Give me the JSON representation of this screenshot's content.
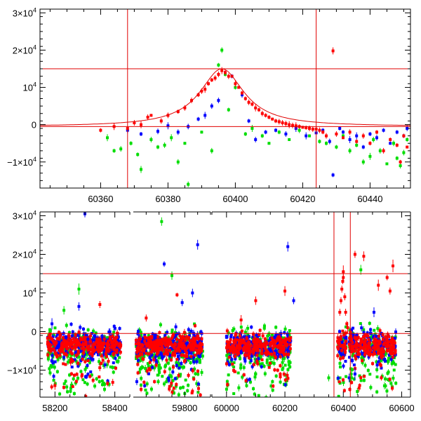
{
  "chart_data": [
    {
      "type": "scatter",
      "title": "",
      "xlabel": "",
      "ylabel": "",
      "xlim": [
        60342,
        60452
      ],
      "ylim": [
        -17000,
        31000
      ],
      "grid": false,
      "x_ticks": [
        "60360",
        "60380",
        "60400",
        "60420",
        "60440"
      ],
      "y_ticks": [
        {
          "value": 30000,
          "base": "3×10",
          "exp": "4"
        },
        {
          "value": 20000,
          "base": "2×10",
          "exp": "4"
        },
        {
          "value": 10000,
          "base": "10",
          "exp": "4"
        },
        {
          "value": 0,
          "base": "0",
          "exp": ""
        },
        {
          "value": -10000,
          "base": "−1×10",
          "exp": "4"
        }
      ],
      "hlines": [
        15000,
        -500
      ],
      "vlines": [
        60368,
        60424
      ],
      "model_curve": {
        "peak_x": 60396,
        "peak_y": 15000,
        "baseline": -500,
        "width": 8,
        "color": "#e00000"
      },
      "series": [
        {
          "color": "#0000ff",
          "points": [
            [
              60368,
              -1500
            ],
            [
              60372,
              -2500
            ],
            [
              60377,
              -1800
            ],
            [
              60380,
              -300
            ],
            [
              60383,
              -2000
            ],
            [
              60386,
              -500
            ],
            [
              60389,
              1500
            ],
            [
              60391,
              2500
            ],
            [
              60393,
              5000
            ],
            [
              60395,
              6500
            ],
            [
              60397,
              14000
            ],
            [
              60399,
              13000
            ],
            [
              60402,
              8000
            ],
            [
              60404,
              1000
            ],
            [
              60406,
              -4000
            ],
            [
              60409,
              -2000
            ],
            [
              60412,
              -1500
            ],
            [
              60415,
              -2500
            ],
            [
              60418,
              -1000
            ],
            [
              60421,
              -3000
            ],
            [
              60424,
              -2200
            ],
            [
              60426,
              -1500
            ],
            [
              60428,
              -4500
            ],
            [
              60429,
              -13500
            ],
            [
              60431,
              -1000
            ],
            [
              60432,
              -2000
            ],
            [
              60434,
              -4000
            ],
            [
              60436,
              -3000
            ],
            [
              60438,
              -6000
            ],
            [
              60440,
              -2500
            ],
            [
              60442,
              -3500
            ],
            [
              60444,
              -1500
            ],
            [
              60446,
              -5000
            ],
            [
              60448,
              -2000
            ],
            [
              60450,
              -3000
            ],
            [
              60451,
              -1000
            ]
          ]
        },
        {
          "color": "#00dd00",
          "points": [
            [
              60362,
              -3500
            ],
            [
              60364,
              -7000
            ],
            [
              60366,
              -6500
            ],
            [
              60369,
              -5000
            ],
            [
              60371,
              -8000
            ],
            [
              60372,
              -12000
            ],
            [
              60375,
              -4000
            ],
            [
              60377,
              -6000
            ],
            [
              60379,
              -5500
            ],
            [
              60381,
              -3500
            ],
            [
              60383,
              -10000
            ],
            [
              60385,
              -5000
            ],
            [
              60386,
              -16000
            ],
            [
              60390,
              -2000
            ],
            [
              60393,
              -7000
            ],
            [
              60395,
              16000
            ],
            [
              60396,
              20000
            ],
            [
              60397,
              13500
            ],
            [
              60398,
              4000
            ],
            [
              60400,
              10000
            ],
            [
              60403,
              -2500
            ],
            [
              60405,
              -1000
            ],
            [
              60408,
              -3000
            ],
            [
              60410,
              -5000
            ],
            [
              60413,
              -2000
            ],
            [
              60416,
              -4000
            ],
            [
              60419,
              -1500
            ],
            [
              60422,
              -3000
            ],
            [
              60425,
              -4500
            ],
            [
              60427,
              -5000
            ],
            [
              60430,
              -6000
            ],
            [
              60432,
              -3000
            ],
            [
              60434,
              -7000
            ],
            [
              60436,
              -5500
            ],
            [
              60438,
              -10000
            ],
            [
              60440,
              -8500
            ],
            [
              60441,
              -4000
            ],
            [
              60443,
              -7000
            ],
            [
              60445,
              -10500
            ],
            [
              60447,
              -5000
            ],
            [
              60448,
              -9000
            ],
            [
              60449,
              -11000
            ],
            [
              60450,
              -7500
            ],
            [
              60451,
              -4000
            ]
          ]
        },
        {
          "color": "#ff0000",
          "points": [
            [
              60360,
              -1500
            ],
            [
              60364,
              -500
            ],
            [
              60368,
              -1000
            ],
            [
              60370,
              500
            ],
            [
              60372,
              0
            ],
            [
              60374,
              2000
            ],
            [
              60375,
              2500
            ],
            [
              60378,
              1000
            ],
            [
              60380,
              2500
            ],
            [
              60383,
              3500
            ],
            [
              60385,
              4500
            ],
            [
              60387,
              6500
            ],
            [
              60389,
              8000
            ],
            [
              60390,
              9000
            ],
            [
              60391,
              9500
            ],
            [
              60392,
              11000
            ],
            [
              60393,
              12000
            ],
            [
              60394,
              12500
            ],
            [
              60395,
              13500
            ],
            [
              60396,
              14500
            ],
            [
              60397,
              14000
            ],
            [
              60398,
              13000
            ],
            [
              60399,
              13000
            ],
            [
              60400,
              11000
            ],
            [
              60401,
              10000
            ],
            [
              60402,
              8500
            ],
            [
              60403,
              7000
            ],
            [
              60404,
              6000
            ],
            [
              60405,
              5500
            ],
            [
              60406,
              4500
            ],
            [
              60407,
              4000
            ],
            [
              60408,
              3000
            ],
            [
              60409,
              2500
            ],
            [
              60410,
              2000
            ],
            [
              60411,
              1500
            ],
            [
              60412,
              1000
            ],
            [
              60413,
              800
            ],
            [
              60414,
              500
            ],
            [
              60415,
              300
            ],
            [
              60416,
              0
            ],
            [
              60417,
              -200
            ],
            [
              60418,
              -300
            ],
            [
              60419,
              -500
            ],
            [
              60420,
              -700
            ],
            [
              60421,
              -800
            ],
            [
              60422,
              -1000
            ],
            [
              60423,
              -1200
            ],
            [
              60424,
              -1200
            ],
            [
              60425,
              -1500
            ],
            [
              60426,
              -2000
            ],
            [
              60427,
              -3000
            ],
            [
              60429,
              19800
            ],
            [
              60430,
              -2500
            ],
            [
              60432,
              -3500
            ],
            [
              60434,
              -2000
            ],
            [
              60436,
              -4500
            ],
            [
              60438,
              -3000
            ],
            [
              60440,
              -5000
            ],
            [
              60442,
              -2000
            ],
            [
              60444,
              -7000
            ],
            [
              60446,
              -4000
            ],
            [
              60448,
              -5500
            ],
            [
              60449,
              -10000
            ],
            [
              60450,
              -3000
            ],
            [
              60451,
              -6000
            ]
          ]
        }
      ]
    },
    {
      "type": "scatter",
      "title": "",
      "xlabel": "",
      "ylabel": "",
      "ylim": [
        -17000,
        31000
      ],
      "grid": false,
      "broken_axis": true,
      "segments": [
        {
          "xlim": [
            58150,
            58450
          ],
          "x_ticks": [
            "58200",
            "58400"
          ]
        },
        {
          "xlim": [
            59600,
            59900
          ],
          "x_ticks": [
            "59800"
          ]
        },
        {
          "xlim": [
            59950,
            60630
          ],
          "x_ticks": [
            "60000",
            "60200",
            "60400",
            "60600"
          ]
        }
      ],
      "y_ticks": [
        {
          "value": 30000,
          "base": "3×10",
          "exp": "4"
        },
        {
          "value": 20000,
          "base": "2×10",
          "exp": "4"
        },
        {
          "value": 10000,
          "base": "10",
          "exp": "4"
        },
        {
          "value": 0,
          "base": "0",
          "exp": ""
        },
        {
          "value": -10000,
          "base": "−1×10",
          "exp": "4"
        }
      ],
      "hlines": [
        15000,
        -500
      ],
      "vlines": [
        60368,
        60424
      ],
      "season_ranges": [
        [
          58175,
          58420
        ],
        [
          59610,
          59870
        ],
        [
          60000,
          60220
        ],
        [
          60380,
          60410
        ],
        [
          60420,
          60580
        ]
      ],
      "highlights": [
        {
          "color": "#0000ff",
          "points": [
            [
              58300,
              30500
            ],
            [
              58280,
              6500
            ],
            [
              58190,
              2000
            ],
            [
              58310,
              -2000
            ],
            [
              59720,
              17500
            ],
            [
              59850,
              22500
            ],
            [
              59790,
              7500
            ],
            [
              59830,
              10000
            ],
            [
              60210,
              22000
            ],
            [
              60170,
              -5000
            ],
            [
              60505,
              5000
            ],
            [
              60440,
              -11000
            ],
            [
              60420,
              -12000
            ],
            [
              60230,
              8000
            ]
          ]
        },
        {
          "color": "#00dd00",
          "points": [
            [
              58280,
              11000
            ],
            [
              58230,
              5500
            ],
            [
              59710,
              28500
            ],
            [
              59750,
              14500
            ],
            [
              59700,
              -10000
            ],
            [
              60460,
              16000
            ],
            [
              60350,
              -12000
            ]
          ]
        },
        {
          "color": "#ff0000",
          "points": [
            [
              58350,
              7000
            ],
            [
              58200,
              -14000
            ],
            [
              59650,
              3500
            ],
            [
              59770,
              9500
            ],
            [
              59840,
              1500
            ],
            [
              60200,
              10500
            ],
            [
              60100,
              8000
            ],
            [
              60050,
              3000
            ],
            [
              60440,
              20000
            ],
            [
              60470,
              19500
            ],
            [
              60520,
              12000
            ],
            [
              60550,
              14000
            ],
            [
              60570,
              17000
            ],
            [
              60560,
              10500
            ],
            [
              60400,
              14000
            ],
            [
              60400,
              15500
            ],
            [
              60398,
              13000
            ],
            [
              60395,
              11000
            ],
            [
              60392,
              8000
            ],
            [
              60405,
              9000
            ],
            [
              60408,
              5000
            ],
            [
              60412,
              2000
            ],
            [
              60415,
              1000
            ],
            [
              60388,
              5000
            ]
          ]
        }
      ]
    }
  ]
}
